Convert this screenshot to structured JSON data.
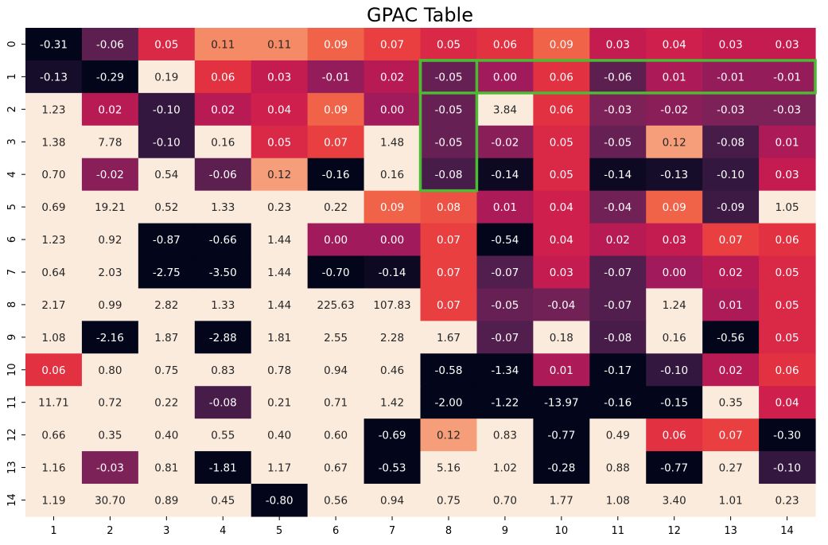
{
  "chart_data": {
    "type": "heatmap",
    "title": "GPAC Table",
    "xlabel": "",
    "ylabel": "",
    "x_ticks": [
      "1",
      "2",
      "3",
      "4",
      "5",
      "6",
      "7",
      "8",
      "9",
      "10",
      "11",
      "12",
      "13",
      "14"
    ],
    "y_ticks": [
      "0",
      "1",
      "2",
      "3",
      "4",
      "5",
      "6",
      "7",
      "8",
      "9",
      "10",
      "11",
      "12",
      "13",
      "14"
    ],
    "values": [
      [
        -0.31,
        -0.06,
        0.05,
        0.11,
        0.11,
        0.09,
        0.07,
        0.05,
        0.06,
        0.09,
        0.03,
        0.04,
        0.03,
        0.03
      ],
      [
        -0.13,
        -0.29,
        0.19,
        0.06,
        0.03,
        -0.01,
        0.02,
        -0.05,
        0.0,
        0.06,
        -0.06,
        0.01,
        -0.01,
        -0.01
      ],
      [
        1.23,
        0.02,
        -0.1,
        0.02,
        0.04,
        0.09,
        0.0,
        -0.05,
        3.84,
        0.06,
        -0.03,
        -0.02,
        -0.03,
        -0.03
      ],
      [
        1.38,
        7.78,
        -0.1,
        0.16,
        0.05,
        0.07,
        1.48,
        -0.05,
        -0.02,
        0.05,
        -0.05,
        0.12,
        -0.08,
        0.01
      ],
      [
        0.7,
        -0.02,
        0.54,
        -0.06,
        0.12,
        -0.16,
        0.16,
        -0.08,
        -0.14,
        0.05,
        -0.14,
        -0.13,
        -0.1,
        0.03
      ],
      [
        0.69,
        19.21,
        0.52,
        1.33,
        0.23,
        0.22,
        0.09,
        0.08,
        0.01,
        0.04,
        -0.04,
        0.09,
        -0.09,
        1.05
      ],
      [
        1.23,
        0.92,
        -0.87,
        -0.66,
        1.44,
        -0.0,
        -0.0,
        0.07,
        -0.54,
        0.04,
        0.02,
        0.03,
        0.07,
        0.06
      ],
      [
        0.64,
        2.03,
        -2.75,
        -3.5,
        1.44,
        -0.7,
        -0.14,
        0.07,
        -0.07,
        0.03,
        -0.07,
        0.0,
        0.02,
        0.05
      ],
      [
        2.17,
        0.99,
        2.82,
        1.33,
        1.44,
        225.63,
        107.83,
        0.07,
        -0.05,
        -0.04,
        -0.07,
        1.24,
        0.01,
        0.05
      ],
      [
        1.08,
        -2.16,
        1.87,
        -2.88,
        1.81,
        2.55,
        2.28,
        1.67,
        -0.07,
        0.18,
        -0.08,
        0.16,
        -0.56,
        0.05
      ],
      [
        0.06,
        0.8,
        0.75,
        0.83,
        0.78,
        0.94,
        0.46,
        -0.58,
        -1.34,
        0.01,
        -0.17,
        -0.1,
        0.02,
        0.06
      ],
      [
        11.71,
        0.72,
        0.22,
        -0.08,
        0.21,
        0.71,
        1.42,
        -2.0,
        -1.22,
        -13.97,
        -0.16,
        -0.15,
        0.35,
        0.04
      ],
      [
        0.66,
        0.35,
        0.4,
        0.55,
        0.4,
        0.6,
        -0.69,
        0.12,
        0.83,
        -0.77,
        0.49,
        0.06,
        0.07,
        -0.3
      ],
      [
        1.16,
        -0.03,
        0.81,
        -1.81,
        1.17,
        0.67,
        -0.53,
        5.16,
        1.02,
        -0.28,
        0.88,
        -0.77,
        0.27,
        -0.1
      ],
      [
        1.19,
        30.7,
        0.89,
        0.45,
        -0.8,
        0.56,
        0.94,
        0.75,
        0.7,
        1.77,
        1.08,
        3.4,
        1.01,
        0.23
      ]
    ],
    "color_range": [
      -0.15,
      0.15
    ],
    "colormap": "rocket",
    "highlights": [
      {
        "type": "row",
        "row": 1,
        "col_start": 8,
        "col_end": 14,
        "color": "#4cbb34"
      },
      {
        "type": "column",
        "col": 8,
        "row_start": 1,
        "row_end": 4,
        "color": "#4cbb34"
      }
    ]
  }
}
